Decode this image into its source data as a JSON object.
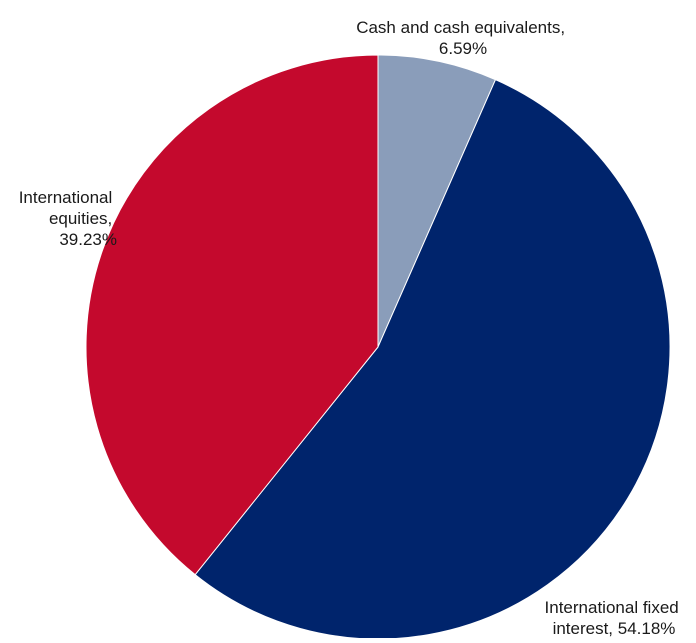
{
  "chart_data": {
    "type": "pie",
    "title": "",
    "slices": [
      {
        "label_lines": [
          "Cash and cash equivalents,",
          "6.59%"
        ],
        "value": 6.59,
        "color": "#8a9dba"
      },
      {
        "label_lines": [
          "International fixed",
          "interest, 54.18%"
        ],
        "value": 54.18,
        "color": "#00246c"
      },
      {
        "label_lines": [
          "International",
          "equities,",
          "39.23%"
        ],
        "value": 39.23,
        "color": "#c4092d"
      }
    ],
    "start": "12 o'clock",
    "direction": "clockwise",
    "legend": "none"
  }
}
